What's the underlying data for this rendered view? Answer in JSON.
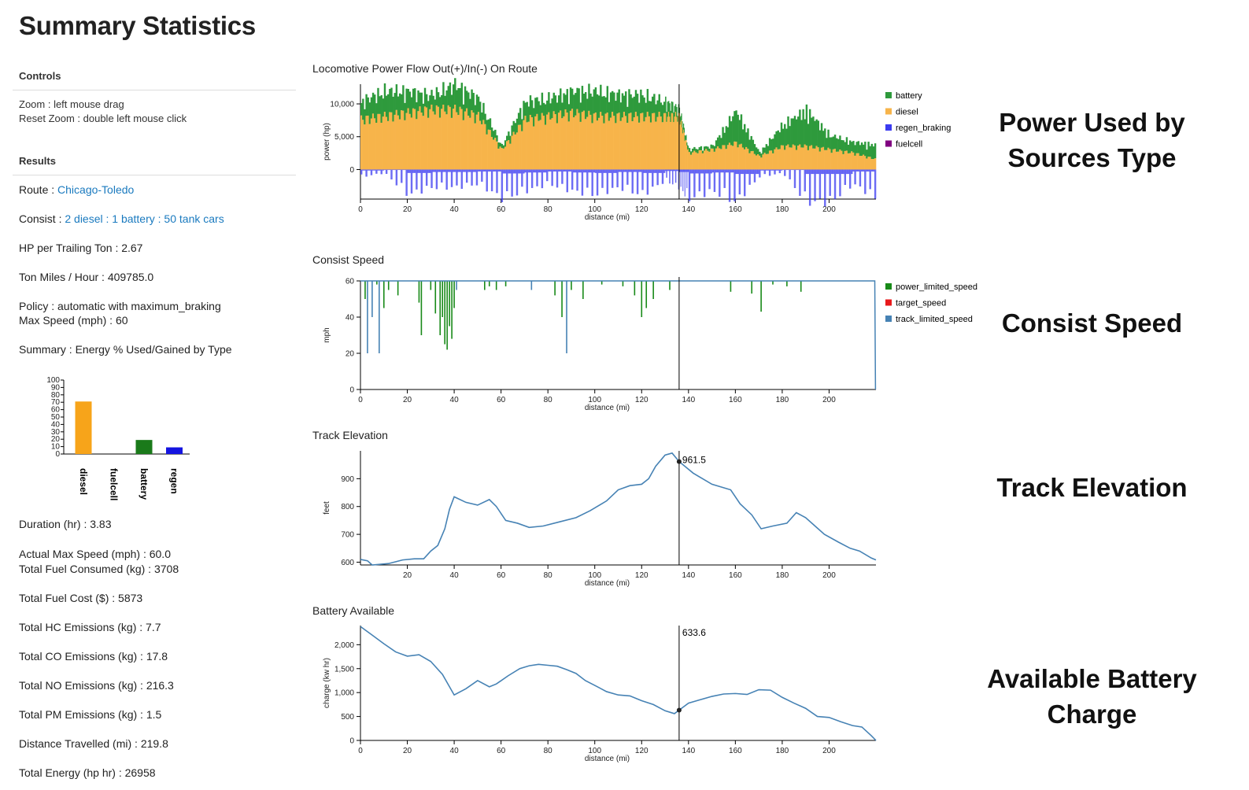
{
  "page_title": "Summary Statistics",
  "controls": {
    "heading": "Controls",
    "zoom": "Zoom : left mouse drag",
    "reset_zoom": "Reset Zoom : double left mouse click"
  },
  "results": {
    "heading": "Results",
    "route_label": "Route : ",
    "route_value": "Chicago-Toledo",
    "consist_label": "Consist : ",
    "consist_value": "2 diesel : 1 battery : 50 tank cars",
    "hp_per_ton": "HP per Trailing Ton : 2.67",
    "ton_miles": "Ton Miles / Hour : 409785.0",
    "policy": "Policy : automatic with maximum_braking",
    "max_speed": "Max Speed (mph) : 60",
    "summary": "Summary : Energy % Used/Gained by Type",
    "duration": "Duration (hr) : 3.83",
    "actual_max_speed": "Actual Max Speed (mph) : 60.0",
    "total_fuel": "Total Fuel Consumed (kg) : 3708",
    "fuel_cost": "Total Fuel Cost ($) : 5873",
    "hc": "Total HC Emissions (kg) : 7.7",
    "co": "Total CO Emissions (kg) : 17.8",
    "no": "Total NO Emissions (kg) : 216.3",
    "pm": "Total PM Emissions (kg) : 1.5",
    "distance": "Distance Travelled (mi) : 219.8",
    "energy": "Total Energy (hp hr) : 26958"
  },
  "side_labels": {
    "power": [
      "Power Used by",
      "Sources Type"
    ],
    "speed": [
      "Consist Speed"
    ],
    "elevation": [
      "Track Elevation"
    ],
    "battery": [
      "Available Battery",
      "Charge"
    ]
  },
  "colors": {
    "battery": "#2e9a3c",
    "diesel": "#f7b44a",
    "regen_braking": "#3b3bf0",
    "fuelcell": "#800080",
    "power_limited_speed": "#188a18",
    "target_speed": "#e8191b",
    "track_limited_speed": "#4682b4",
    "line": "#4682b4"
  },
  "chart_data": [
    {
      "id": "energy",
      "type": "bar",
      "categories": [
        "diesel",
        "fuelcell",
        "battery",
        "regen"
      ],
      "values": [
        71,
        0,
        19,
        9
      ],
      "colors": [
        "#f7a41a",
        "#888888",
        "#1a7a1a",
        "#1414e0"
      ],
      "ylim": [
        0,
        100
      ],
      "yticks": [
        0,
        10,
        20,
        30,
        40,
        50,
        60,
        70,
        80,
        90,
        100
      ]
    },
    {
      "id": "power",
      "type": "bar",
      "title": "Locomotive Power Flow Out(+)/In(-) On Route",
      "xlabel": "distance (mi)",
      "ylabel": "power (hp)",
      "xlim": [
        0,
        220
      ],
      "ylim": [
        -4500,
        13000
      ],
      "xticks": [
        0,
        20,
        40,
        60,
        80,
        100,
        120,
        140,
        160,
        180,
        200
      ],
      "yticks": [
        0,
        5000,
        10000
      ],
      "ytick_labels": [
        "0",
        "5,000",
        "10,000"
      ],
      "cursor_x": 136,
      "legend": [
        "battery",
        "diesel",
        "regen_braking",
        "fuelcell"
      ],
      "legend_position": "right",
      "x": [
        0,
        10,
        20,
        30,
        40,
        50,
        60,
        70,
        80,
        90,
        100,
        110,
        120,
        130,
        136,
        140,
        150,
        160,
        170,
        180,
        190,
        200,
        210,
        220
      ],
      "series": [
        {
          "name": "diesel",
          "values": [
            7500,
            8000,
            8500,
            9000,
            9000,
            8000,
            3000,
            7500,
            8000,
            8500,
            8000,
            8000,
            8000,
            8000,
            8000,
            2500,
            3000,
            4000,
            2000,
            3500,
            3500,
            3000,
            2500,
            1500
          ]
        },
        {
          "name": "battery",
          "values": [
            2500,
            3500,
            3000,
            2000,
            3500,
            2500,
            500,
            2500,
            2500,
            3000,
            3500,
            3000,
            3000,
            2000,
            1000,
            500,
            500,
            4500,
            500,
            3000,
            5000,
            2000,
            1500,
            2000
          ]
        },
        {
          "name": "regen_braking",
          "values": [
            -1000,
            -500,
            -3500,
            -2500,
            -2500,
            -2000,
            -4000,
            -3000,
            -2000,
            -3000,
            -3500,
            -2500,
            -3500,
            -1500,
            -2500,
            -4000,
            -3000,
            -4500,
            -1000,
            -500,
            -4500,
            -4500,
            -2000,
            -4000
          ]
        },
        {
          "name": "fuelcell",
          "values": [
            0,
            0,
            0,
            0,
            0,
            0,
            0,
            0,
            0,
            0,
            0,
            0,
            0,
            0,
            0,
            0,
            0,
            0,
            0,
            0,
            0,
            0,
            0,
            0
          ]
        }
      ]
    },
    {
      "id": "speed",
      "type": "line",
      "title": "Consist Speed",
      "xlabel": "distance (mi)",
      "ylabel": "mph",
      "xlim": [
        0,
        220
      ],
      "ylim": [
        0,
        60
      ],
      "xticks": [
        0,
        20,
        40,
        60,
        80,
        100,
        120,
        140,
        160,
        180,
        200
      ],
      "yticks": [
        0,
        20,
        40,
        60
      ],
      "cursor_x": 136,
      "legend": [
        "power_limited_speed",
        "target_speed",
        "track_limited_speed"
      ],
      "legend_position": "right",
      "track_limited_speed": [
        [
          0,
          60
        ],
        [
          219.5,
          60
        ],
        [
          219.8,
          0
        ]
      ],
      "dips": [
        {
          "x": 2,
          "y": 50,
          "s": "power_limited_speed"
        },
        {
          "x": 3,
          "y": 20,
          "s": "track_limited_speed"
        },
        {
          "x": 5,
          "y": 40,
          "s": "track_limited_speed"
        },
        {
          "x": 7,
          "y": 58,
          "s": "power_limited_speed"
        },
        {
          "x": 8,
          "y": 20,
          "s": "track_limited_speed"
        },
        {
          "x": 10,
          "y": 45,
          "s": "power_limited_speed"
        },
        {
          "x": 12,
          "y": 55,
          "s": "power_limited_speed"
        },
        {
          "x": 16,
          "y": 52,
          "s": "power_limited_speed"
        },
        {
          "x": 25,
          "y": 48,
          "s": "power_limited_speed"
        },
        {
          "x": 26,
          "y": 30,
          "s": "power_limited_speed"
        },
        {
          "x": 30,
          "y": 55,
          "s": "power_limited_speed"
        },
        {
          "x": 32,
          "y": 42,
          "s": "power_limited_speed"
        },
        {
          "x": 34,
          "y": 30,
          "s": "power_limited_speed"
        },
        {
          "x": 35,
          "y": 40,
          "s": "power_limited_speed"
        },
        {
          "x": 36,
          "y": 25,
          "s": "power_limited_speed"
        },
        {
          "x": 37,
          "y": 22,
          "s": "power_limited_speed"
        },
        {
          "x": 38,
          "y": 35,
          "s": "power_limited_speed"
        },
        {
          "x": 39,
          "y": 28,
          "s": "power_limited_speed"
        },
        {
          "x": 40,
          "y": 45,
          "s": "power_limited_speed"
        },
        {
          "x": 41,
          "y": 55,
          "s": "track_limited_speed"
        },
        {
          "x": 53,
          "y": 55,
          "s": "power_limited_speed"
        },
        {
          "x": 55,
          "y": 57,
          "s": "power_limited_speed"
        },
        {
          "x": 58,
          "y": 55,
          "s": "power_limited_speed"
        },
        {
          "x": 62,
          "y": 57,
          "s": "power_limited_speed"
        },
        {
          "x": 73,
          "y": 55,
          "s": "track_limited_speed"
        },
        {
          "x": 83,
          "y": 52,
          "s": "power_limited_speed"
        },
        {
          "x": 86,
          "y": 40,
          "s": "power_limited_speed"
        },
        {
          "x": 88,
          "y": 20,
          "s": "track_limited_speed"
        },
        {
          "x": 90,
          "y": 55,
          "s": "power_limited_speed"
        },
        {
          "x": 95,
          "y": 50,
          "s": "power_limited_speed"
        },
        {
          "x": 103,
          "y": 58,
          "s": "power_limited_speed"
        },
        {
          "x": 112,
          "y": 57,
          "s": "power_limited_speed"
        },
        {
          "x": 117,
          "y": 52,
          "s": "power_limited_speed"
        },
        {
          "x": 120,
          "y": 40,
          "s": "power_limited_speed"
        },
        {
          "x": 122,
          "y": 45,
          "s": "power_limited_speed"
        },
        {
          "x": 125,
          "y": 50,
          "s": "power_limited_speed"
        },
        {
          "x": 132,
          "y": 55,
          "s": "power_limited_speed"
        },
        {
          "x": 158,
          "y": 54,
          "s": "power_limited_speed"
        },
        {
          "x": 167,
          "y": 53,
          "s": "power_limited_speed"
        },
        {
          "x": 171,
          "y": 43,
          "s": "power_limited_speed"
        },
        {
          "x": 176,
          "y": 58,
          "s": "power_limited_speed"
        },
        {
          "x": 182,
          "y": 57,
          "s": "power_limited_speed"
        },
        {
          "x": 188,
          "y": 54,
          "s": "power_limited_speed"
        }
      ]
    },
    {
      "id": "elevation",
      "type": "line",
      "title": "Track Elevation",
      "xlabel": "distance (mi)",
      "ylabel": "feet",
      "xlim": [
        0,
        220
      ],
      "ylim": [
        590,
        1000
      ],
      "xticks": [
        20,
        40,
        60,
        80,
        100,
        120,
        140,
        160,
        180,
        200
      ],
      "yticks": [
        600,
        700,
        800,
        900
      ],
      "cursor_x": 136,
      "cursor_label": "961.5",
      "cursor_y": 961.5,
      "points": [
        [
          0,
          610
        ],
        [
          3,
          605
        ],
        [
          5,
          590
        ],
        [
          12,
          595
        ],
        [
          18,
          608
        ],
        [
          23,
          612
        ],
        [
          27,
          612
        ],
        [
          30,
          640
        ],
        [
          33,
          660
        ],
        [
          36,
          720
        ],
        [
          38,
          790
        ],
        [
          40,
          835
        ],
        [
          45,
          815
        ],
        [
          50,
          805
        ],
        [
          55,
          825
        ],
        [
          58,
          800
        ],
        [
          62,
          750
        ],
        [
          67,
          740
        ],
        [
          72,
          725
        ],
        [
          78,
          730
        ],
        [
          85,
          745
        ],
        [
          92,
          760
        ],
        [
          98,
          785
        ],
        [
          105,
          820
        ],
        [
          110,
          860
        ],
        [
          115,
          875
        ],
        [
          120,
          880
        ],
        [
          123,
          900
        ],
        [
          126,
          945
        ],
        [
          130,
          985
        ],
        [
          133,
          992
        ],
        [
          136,
          961.5
        ],
        [
          142,
          920
        ],
        [
          150,
          880
        ],
        [
          158,
          860
        ],
        [
          162,
          810
        ],
        [
          167,
          770
        ],
        [
          171,
          720
        ],
        [
          176,
          730
        ],
        [
          182,
          740
        ],
        [
          186,
          778
        ],
        [
          190,
          760
        ],
        [
          194,
          730
        ],
        [
          198,
          700
        ],
        [
          204,
          672
        ],
        [
          209,
          650
        ],
        [
          213,
          640
        ],
        [
          218,
          615
        ],
        [
          220,
          608
        ]
      ]
    },
    {
      "id": "battery",
      "type": "line",
      "title": "Battery Available",
      "xlabel": "distance (mi)",
      "ylabel": "charge (kw hr)",
      "xlim": [
        0,
        220
      ],
      "ylim": [
        0,
        2400
      ],
      "xticks": [
        0,
        20,
        40,
        60,
        80,
        100,
        120,
        140,
        160,
        180,
        200
      ],
      "yticks": [
        0,
        500,
        1000,
        1500,
        2000
      ],
      "ytick_labels": [
        "0",
        "500",
        "1,000",
        "1,500",
        "2,000"
      ],
      "cursor_x": 136,
      "cursor_label": "633.6",
      "cursor_y": 633.6,
      "points": [
        [
          0,
          2380
        ],
        [
          5,
          2200
        ],
        [
          10,
          2020
        ],
        [
          15,
          1850
        ],
        [
          20,
          1760
        ],
        [
          25,
          1790
        ],
        [
          30,
          1650
        ],
        [
          35,
          1380
        ],
        [
          40,
          950
        ],
        [
          45,
          1080
        ],
        [
          50,
          1250
        ],
        [
          55,
          1120
        ],
        [
          58,
          1180
        ],
        [
          63,
          1350
        ],
        [
          68,
          1500
        ],
        [
          72,
          1560
        ],
        [
          76,
          1590
        ],
        [
          80,
          1570
        ],
        [
          84,
          1550
        ],
        [
          88,
          1480
        ],
        [
          92,
          1400
        ],
        [
          96,
          1250
        ],
        [
          100,
          1150
        ],
        [
          105,
          1020
        ],
        [
          110,
          950
        ],
        [
          115,
          930
        ],
        [
          120,
          830
        ],
        [
          125,
          750
        ],
        [
          130,
          620
        ],
        [
          134,
          560
        ],
        [
          136,
          633.6
        ],
        [
          140,
          780
        ],
        [
          145,
          850
        ],
        [
          150,
          920
        ],
        [
          155,
          970
        ],
        [
          160,
          980
        ],
        [
          165,
          960
        ],
        [
          170,
          1060
        ],
        [
          175,
          1050
        ],
        [
          180,
          900
        ],
        [
          185,
          780
        ],
        [
          190,
          670
        ],
        [
          195,
          500
        ],
        [
          200,
          480
        ],
        [
          205,
          390
        ],
        [
          210,
          310
        ],
        [
          214,
          280
        ],
        [
          218,
          100
        ],
        [
          220,
          0
        ]
      ]
    }
  ]
}
